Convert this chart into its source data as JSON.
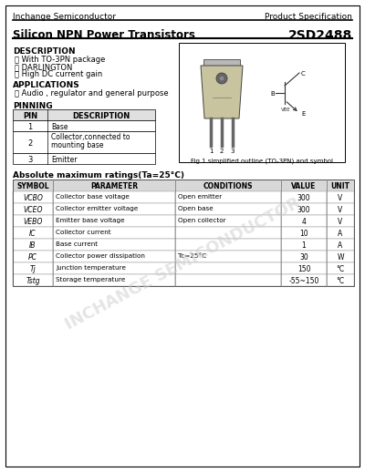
{
  "company": "Inchange Semiconductor",
  "doc_type": "Product Specification",
  "title": "Silicon NPN Power Transistors",
  "part_number": "2SD2488",
  "description_title": "DESCRIPTION",
  "description_items": [
    "␙ With TO-3PN package",
    "␙ DARLINGTON",
    "␙ High DC current gain"
  ],
  "applications_title": "APPLICATIONS",
  "applications_items": [
    "␙ Audio , regulator and general purpose"
  ],
  "pinning_title": "PINNING",
  "pin_headers": [
    "PIN",
    "DESCRIPTION"
  ],
  "pins": [
    [
      "1",
      "Base"
    ],
    [
      "2",
      "Collector,connected to\nmounting base"
    ],
    [
      "3",
      "Emitter"
    ]
  ],
  "fig_caption": "Fig.1 simplified outline (TO-3PN) and symbol",
  "abs_max_title": "Absolute maximum ratings(Ta=25°C)",
  "table_headers": [
    "SYMBOL",
    "PARAMETER",
    "CONDITIONS",
    "VALUE",
    "UNIT"
  ],
  "table_symbols": [
    "VCBO",
    "VCEO",
    "VEBO",
    "IC",
    "IB",
    "PC",
    "Tj",
    "Tstg"
  ],
  "table_params": [
    "Collector base voltage",
    "Collector emitter voltage",
    "Emitter base voltage",
    "Collector current",
    "Base current",
    "Collector power dissipation",
    "Junction temperature",
    "Storage temperature"
  ],
  "table_conditions": [
    "Open emitter",
    "Open base",
    "Open collector",
    "",
    "",
    "Tc=25°C",
    "",
    ""
  ],
  "table_values": [
    "300",
    "300",
    "4",
    "10",
    "1",
    "30",
    "150",
    "-55~150"
  ],
  "table_units": [
    "V",
    "V",
    "V",
    "A",
    "A",
    "W",
    "°C",
    "°C"
  ],
  "watermark_text": "INCHANGE SEMICONDUCTOR",
  "bg_color": "#ffffff"
}
